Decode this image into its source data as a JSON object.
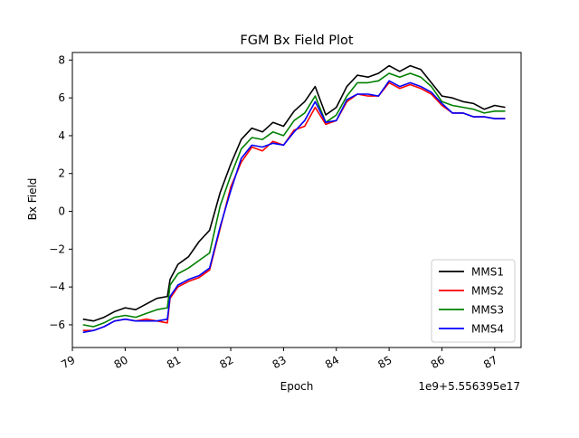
{
  "chart_data": {
    "type": "line",
    "title": "FGM Bx Field Plot",
    "xlabel": "Epoch",
    "ylabel": "Bx Field",
    "offset_text": "1e9+5.556395e17",
    "xlim": [
      79.0,
      87.5
    ],
    "ylim": [
      -7.2,
      8.4
    ],
    "x_ticks": [
      79,
      80,
      81,
      82,
      83,
      84,
      85,
      86,
      87
    ],
    "x_tick_labels": [
      "79",
      "80",
      "81",
      "82",
      "83",
      "84",
      "85",
      "86",
      "87"
    ],
    "y_ticks": [
      -6,
      -4,
      -2,
      0,
      2,
      4,
      6,
      8
    ],
    "y_tick_labels": [
      "−6",
      "−4",
      "−2",
      "0",
      "2",
      "4",
      "6",
      "8"
    ],
    "grid": false,
    "legend_position": "lower-right",
    "x": [
      79.2,
      79.4,
      79.6,
      79.8,
      80.0,
      80.2,
      80.4,
      80.6,
      80.8,
      80.85,
      81.0,
      81.2,
      81.4,
      81.6,
      81.8,
      82.0,
      82.2,
      82.4,
      82.6,
      82.8,
      83.0,
      83.2,
      83.4,
      83.6,
      83.8,
      84.0,
      84.2,
      84.4,
      84.6,
      84.8,
      85.0,
      85.2,
      85.4,
      85.6,
      85.8,
      86.0,
      86.2,
      86.4,
      86.6,
      86.8,
      87.0,
      87.2
    ],
    "series": [
      {
        "name": "MMS1",
        "color": "#000000",
        "values": [
          -5.7,
          -5.8,
          -5.6,
          -5.3,
          -5.1,
          -5.2,
          -4.9,
          -4.6,
          -4.5,
          -3.6,
          -2.8,
          -2.4,
          -1.6,
          -1.0,
          1.0,
          2.5,
          3.8,
          4.4,
          4.2,
          4.7,
          4.5,
          5.3,
          5.8,
          6.6,
          5.1,
          5.5,
          6.6,
          7.2,
          7.1,
          7.3,
          7.7,
          7.4,
          7.7,
          7.5,
          6.8,
          6.1,
          6.0,
          5.8,
          5.7,
          5.4,
          5.6,
          5.5
        ]
      },
      {
        "name": "MMS2",
        "color": "#ff0000",
        "values": [
          -6.3,
          -6.3,
          -6.1,
          -5.8,
          -5.7,
          -5.8,
          -5.7,
          -5.8,
          -5.9,
          -4.6,
          -4.0,
          -3.7,
          -3.5,
          -3.1,
          -0.9,
          1.3,
          2.6,
          3.4,
          3.2,
          3.7,
          3.5,
          4.3,
          4.5,
          5.5,
          4.6,
          4.8,
          5.8,
          6.2,
          6.1,
          6.1,
          6.8,
          6.5,
          6.7,
          6.5,
          6.2,
          5.6,
          5.2,
          5.2,
          5.0,
          5.0,
          4.9,
          4.9
        ]
      },
      {
        "name": "MMS3",
        "color": "#008000",
        "values": [
          -6.0,
          -6.1,
          -5.9,
          -5.6,
          -5.5,
          -5.6,
          -5.4,
          -5.2,
          -5.1,
          -3.9,
          -3.3,
          -3.0,
          -2.6,
          -2.2,
          0.3,
          1.9,
          3.3,
          3.9,
          3.8,
          4.2,
          4.0,
          4.8,
          5.2,
          6.1,
          4.7,
          5.1,
          6.1,
          6.8,
          6.8,
          6.9,
          7.3,
          7.1,
          7.3,
          7.1,
          6.6,
          5.8,
          5.6,
          5.5,
          5.4,
          5.2,
          5.3,
          5.3
        ]
      },
      {
        "name": "MMS4",
        "color": "#0000ff",
        "values": [
          -6.4,
          -6.3,
          -6.1,
          -5.8,
          -5.7,
          -5.8,
          -5.8,
          -5.8,
          -5.7,
          -4.5,
          -3.9,
          -3.6,
          -3.4,
          -3.0,
          -0.8,
          1.1,
          2.8,
          3.5,
          3.4,
          3.6,
          3.5,
          4.2,
          4.8,
          5.8,
          4.7,
          4.8,
          5.9,
          6.2,
          6.2,
          6.1,
          6.9,
          6.6,
          6.8,
          6.6,
          6.3,
          5.7,
          5.2,
          5.2,
          5.0,
          5.0,
          4.9,
          4.9
        ]
      }
    ]
  }
}
